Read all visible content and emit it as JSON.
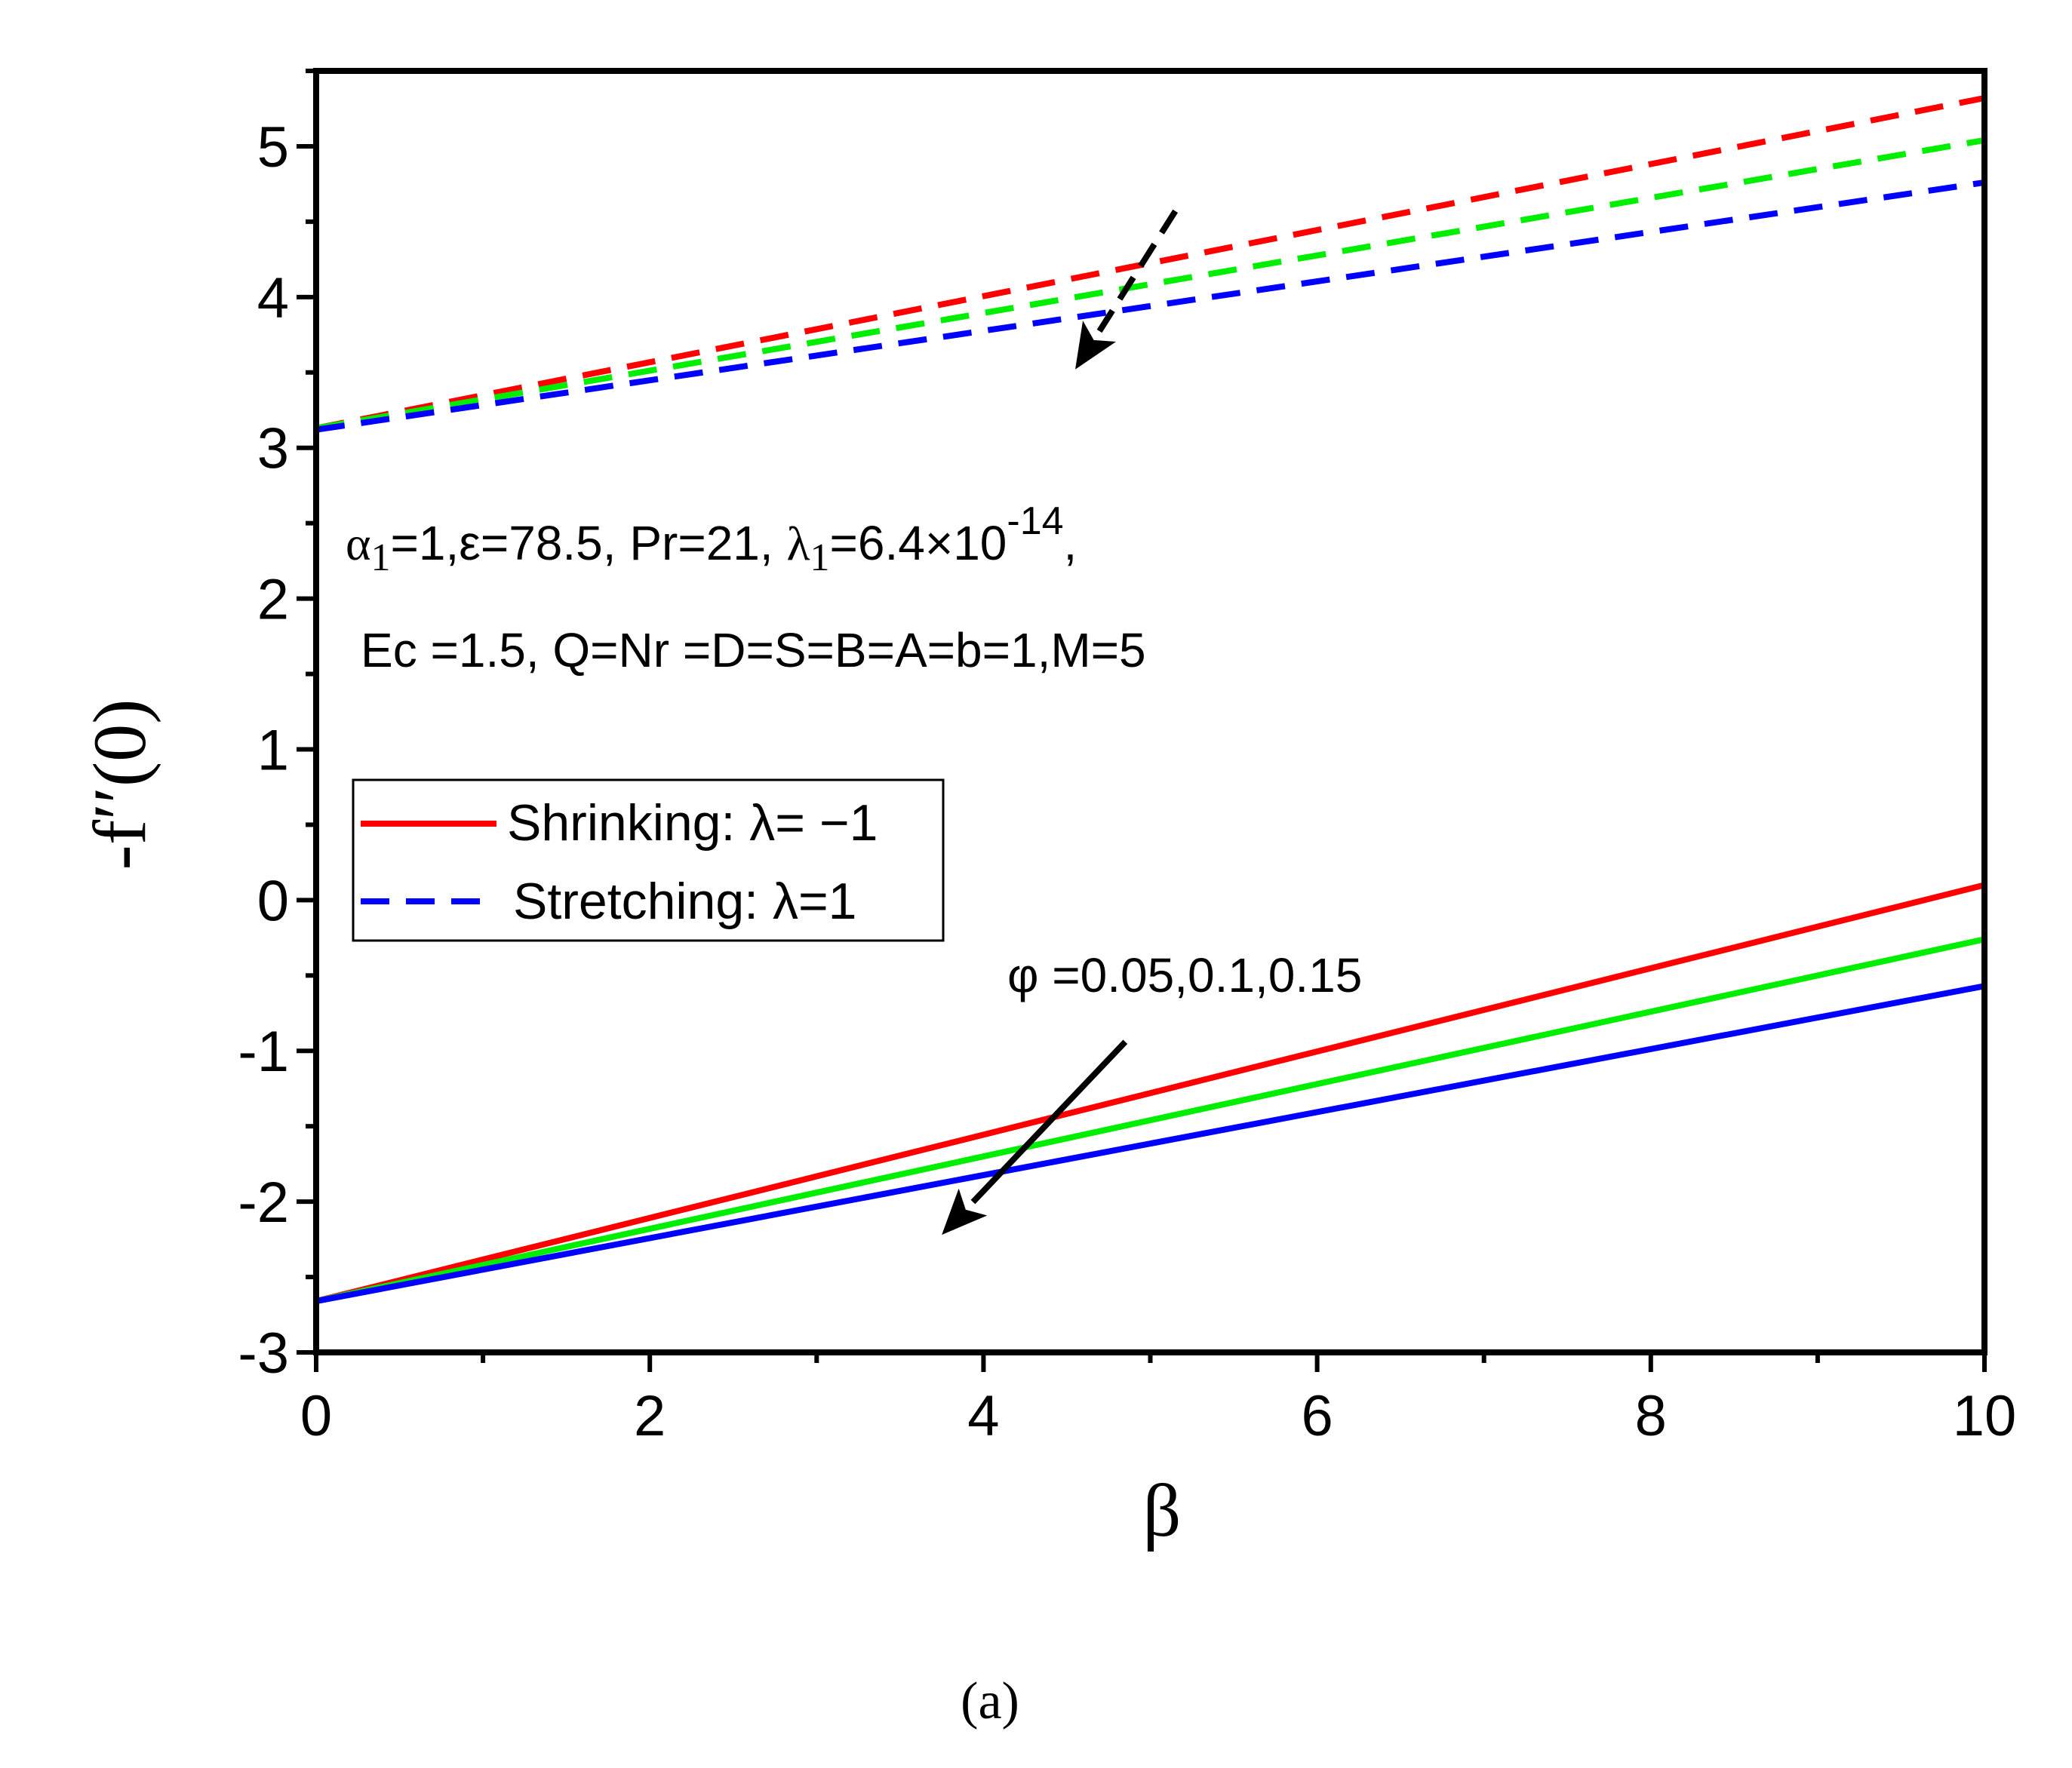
{
  "chart_data": {
    "type": "line",
    "xlabel": "β",
    "ylabel": "-f′′(0)",
    "xlim": [
      0,
      10
    ],
    "ylim": [
      -3,
      5.5
    ],
    "x_ticks": [
      0,
      2,
      4,
      6,
      8,
      10
    ],
    "y_ticks": [
      -3,
      -2,
      -1,
      0,
      1,
      2,
      3,
      4,
      5
    ],
    "x_tick_labels": [
      "0",
      "2",
      "4",
      "6",
      "8",
      "10"
    ],
    "y_tick_labels": [
      "-3",
      "-2",
      "-1",
      "0",
      "1",
      "2",
      "3",
      "4",
      "5"
    ],
    "grid": false,
    "legend_position": "middle-left",
    "legend": [
      {
        "label": "Shrinking: λ= −1",
        "style": "solid",
        "color": "#ff0000"
      },
      {
        "label": "Stretching: λ=1",
        "style": "dashed",
        "color": "#0000ff"
      }
    ],
    "series": [
      {
        "name": "Shrinking φ=0.05",
        "style": "solid",
        "color": "#ff0000",
        "x": [
          0,
          10
        ],
        "y": [
          -2.66,
          0.1
        ]
      },
      {
        "name": "Shrinking φ=0.1",
        "style": "solid",
        "color": "#00ee00",
        "x": [
          0,
          10
        ],
        "y": [
          -2.66,
          -0.26
        ]
      },
      {
        "name": "Shrinking φ=0.15",
        "style": "solid",
        "color": "#0000ff",
        "x": [
          0,
          10
        ],
        "y": [
          -2.66,
          -0.57
        ]
      },
      {
        "name": "Stretching φ=0.05",
        "style": "dashed",
        "color": "#ff0000",
        "x": [
          0,
          10
        ],
        "y": [
          3.13,
          5.32
        ]
      },
      {
        "name": "Stretching φ=0.1",
        "style": "dashed",
        "color": "#00ee00",
        "x": [
          0,
          10
        ],
        "y": [
          3.13,
          5.04
        ]
      },
      {
        "name": "Stretching φ=0.15",
        "style": "dashed",
        "color": "#0000ff",
        "x": [
          0,
          10
        ],
        "y": [
          3.12,
          4.76
        ]
      }
    ],
    "annotations": {
      "params_line1": {
        "alpha": "α",
        "alpha_sub": "1",
        "alpha_rest": "=1,ε=78.5, Pr=21, ",
        "lambda": "λ",
        "lambda_sub": "1",
        "lambda_rest": "=6.4×10",
        "exp": "-14",
        "tail": ","
      },
      "params_line2": "Ec =1.5, Q=Nr =D=S=B=A=b=1,M=5",
      "phi_label": "φ =0.05,0.1,0.15",
      "arrows": [
        {
          "name": "solid-arrow",
          "style": "solid",
          "from": [
            4.85,
            -0.94
          ],
          "to": [
            3.75,
            -2.22
          ]
        },
        {
          "name": "dashed-arrow",
          "style": "dashed",
          "from": [
            5.15,
            4.57
          ],
          "to": [
            4.55,
            3.52
          ]
        }
      ]
    },
    "caption": "(a)"
  }
}
